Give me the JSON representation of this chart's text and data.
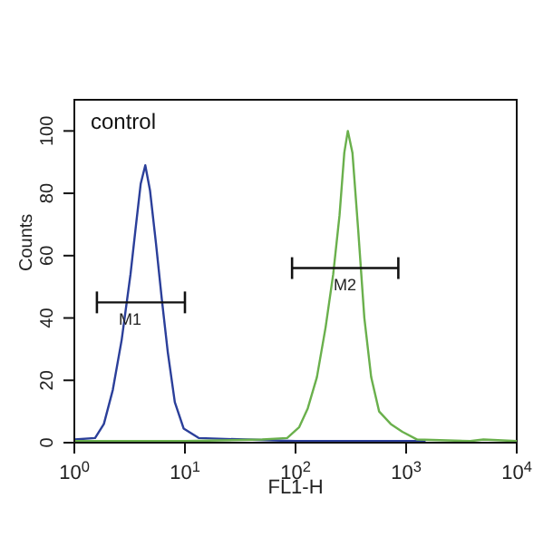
{
  "chart_data": {
    "type": "line",
    "xlabel": "FL1-H",
    "ylabel": "Counts",
    "log": "x",
    "xlim": [
      1,
      10000
    ],
    "ylim": [
      0,
      110
    ],
    "xticks": [
      {
        "value": 1,
        "label": "10$^{0}$"
      },
      {
        "value": 10,
        "label": "10$^{1}$"
      },
      {
        "value": 100,
        "label": "10$^{2}$"
      },
      {
        "value": 1000,
        "label": "10$^{3}$"
      },
      {
        "value": 10000,
        "label": "10$^{4}$"
      }
    ],
    "yticks": [
      0,
      20,
      40,
      60,
      80,
      100
    ],
    "grid": false,
    "legend": false,
    "marker": "none",
    "line_style": "solid",
    "annotations": [
      "control",
      {
        "text": "M1",
        "x": 3.2,
        "y": 45
      },
      {
        "text": "M2",
        "x": 280,
        "y": 56
      }
    ],
    "series": [
      {
        "color": "#2b3f9a",
        "x": [
          1,
          1.54,
          1.85,
          2.23,
          2.68,
          3.22,
          3.64,
          3.98,
          4.38,
          4.83,
          5.47,
          6.18,
          7.0,
          8.1,
          9.75,
          13.3,
          35,
          100,
          300,
          1000,
          1500
        ],
        "values": [
          1,
          1.5,
          6,
          17,
          33,
          54,
          71,
          83,
          89,
          81,
          64,
          46,
          29,
          13,
          4.5,
          1.5,
          1,
          0.5,
          0.5,
          0.5,
          0.5
        ]
      },
      {
        "color": "#6ab04c",
        "x": [
          1,
          10,
          50,
          84,
          108,
          129,
          156,
          187,
          219,
          250,
          276,
          297,
          327,
          369,
          419,
          483,
          570,
          726,
          924,
          1260,
          3800,
          5000,
          10000
        ],
        "values": [
          0.5,
          0.5,
          1,
          1.5,
          5,
          11,
          21,
          37,
          54,
          73,
          93,
          100,
          93,
          68,
          40,
          21,
          10,
          6,
          3.5,
          1,
          0.5,
          1,
          0.5
        ]
      },
      {
        "type": "step",
        "color": "#111111",
        "x": [
          1.6,
          10
        ],
        "values": [
          45,
          45
        ]
      },
      {
        "type": "step",
        "color": "#111111",
        "x": [
          93,
          850
        ],
        "values": [
          56,
          56
        ]
      }
    ]
  }
}
